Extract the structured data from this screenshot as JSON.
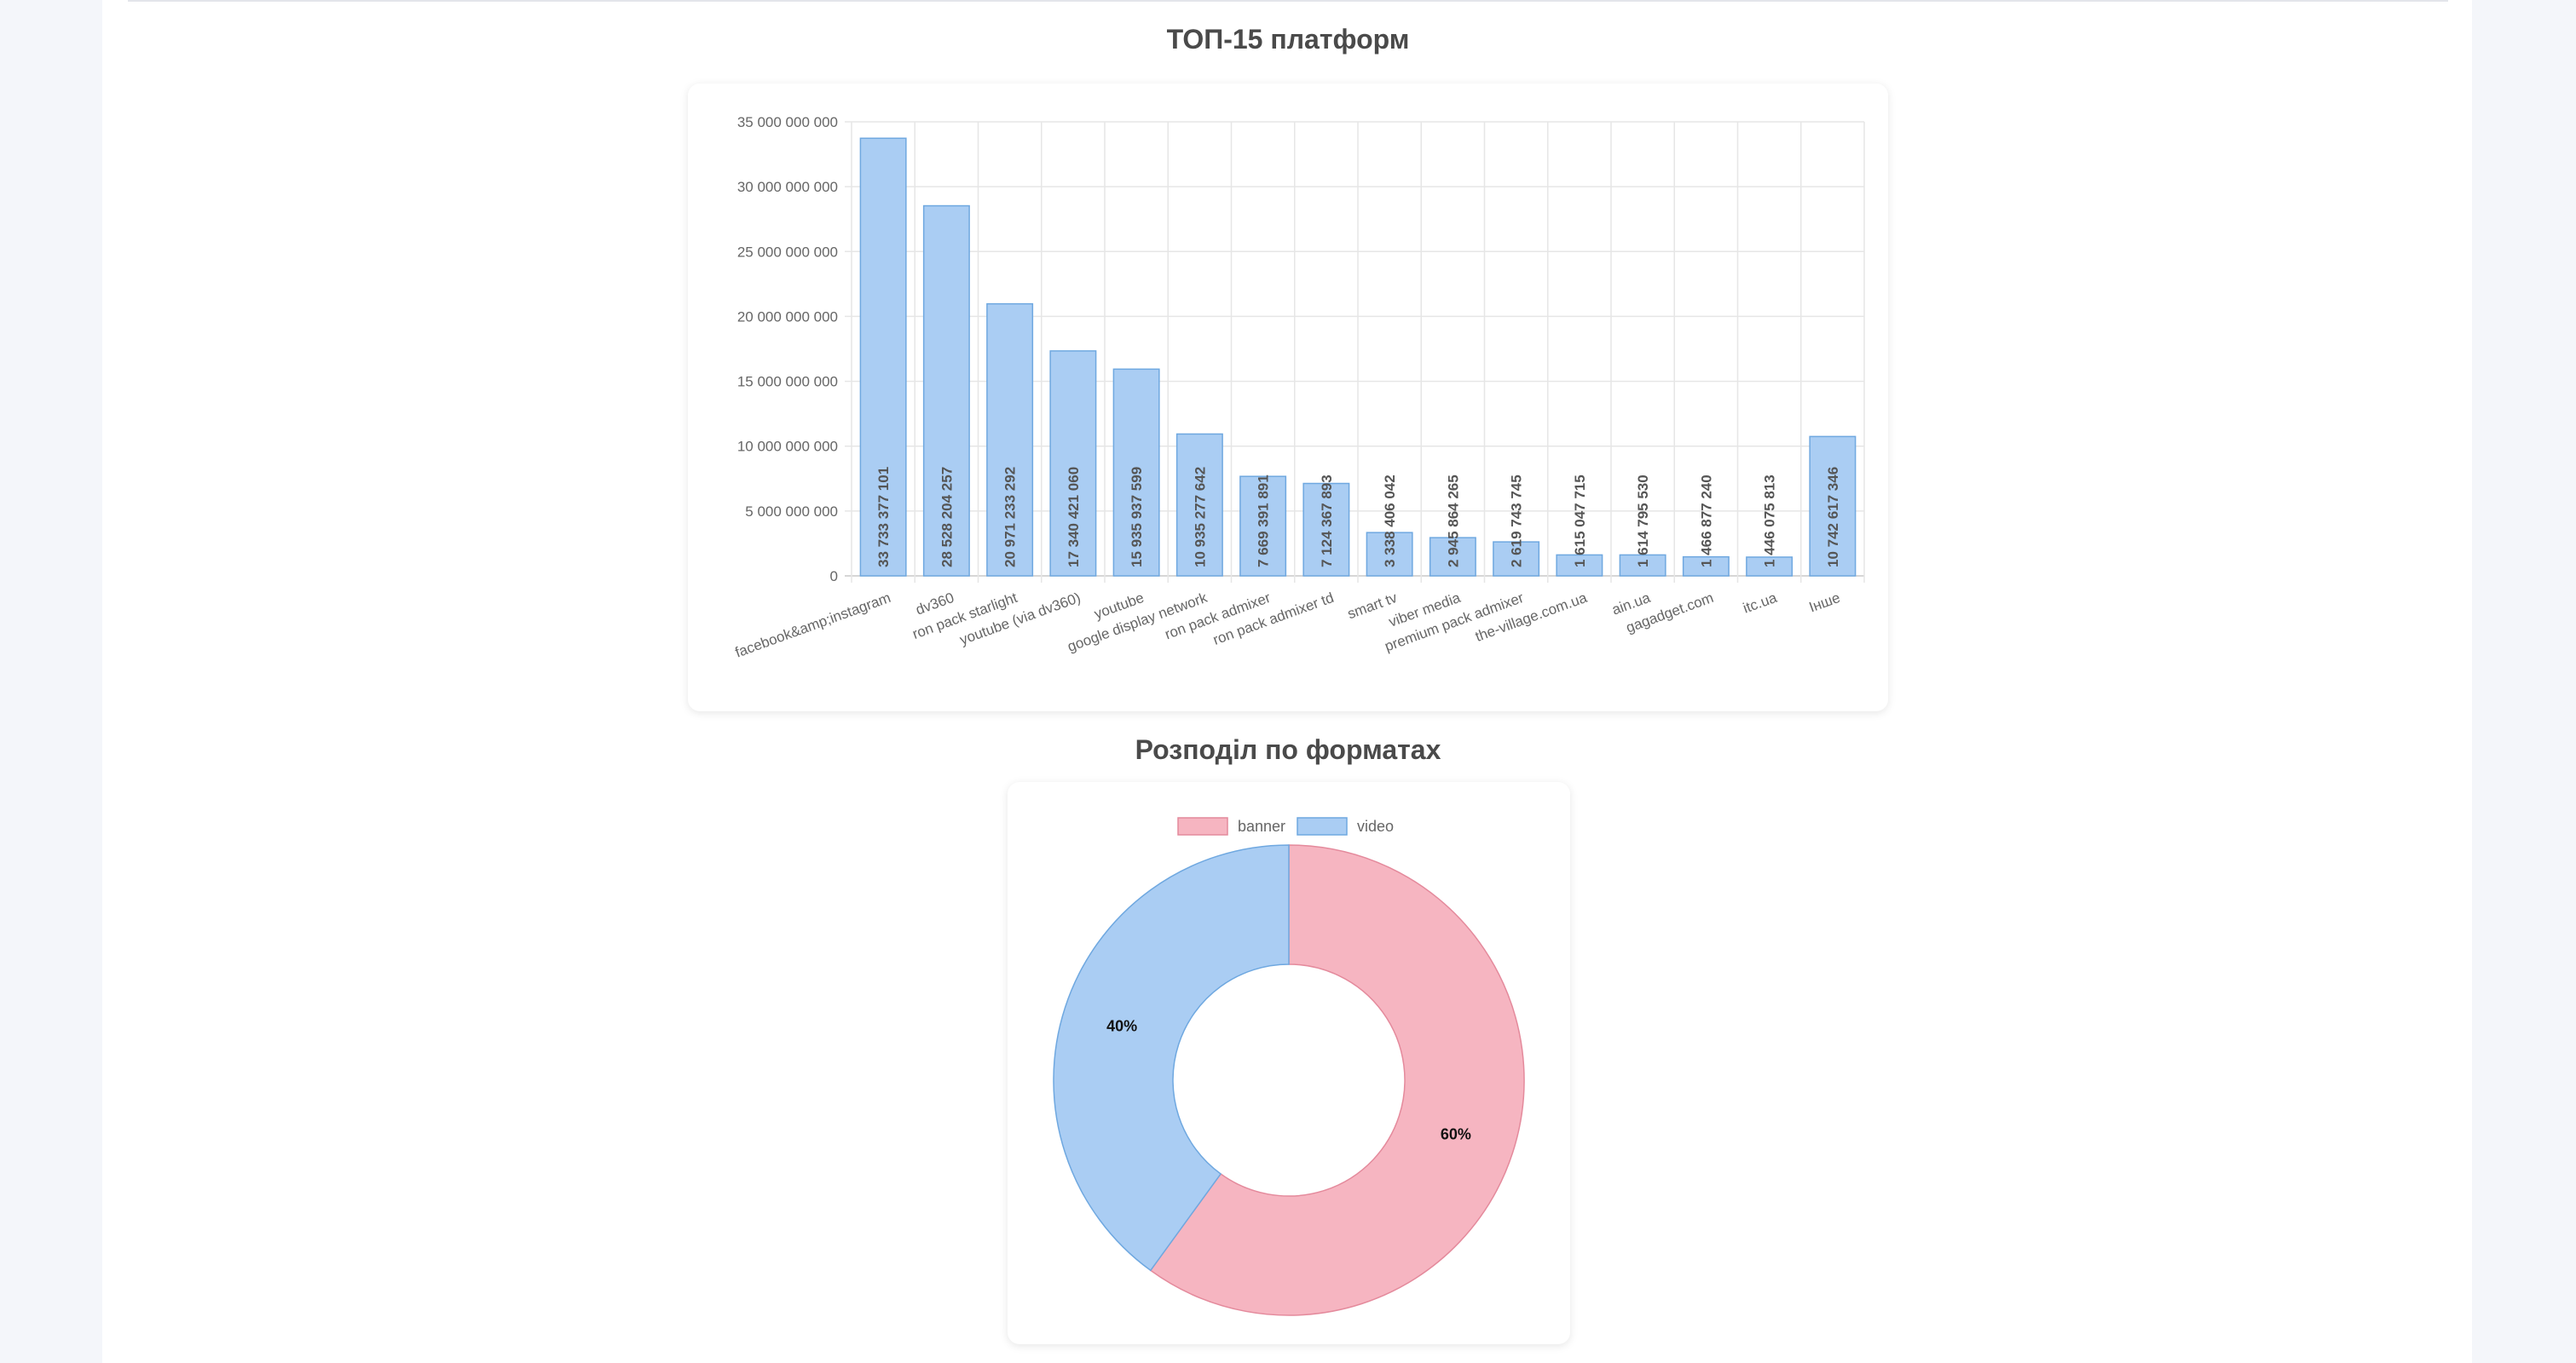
{
  "sections": {
    "platforms_title": "ТОП-15 платформ",
    "formats_title": "Розподіл по форматах"
  },
  "colors": {
    "bar_fill": "#aacdf3",
    "bar_stroke": "#6fa8e0",
    "banner": "#f6b5c1",
    "banner_stroke": "#e48a9c",
    "video": "#aacdf3",
    "video_stroke": "#6fa8e0"
  },
  "chart_data": [
    {
      "type": "bar",
      "title": "ТОП-15 платформ",
      "categories": [
        "facebook&amp;instagram",
        "dv360",
        "ron pack starlight",
        "youtube (via dv360)",
        "youtube",
        "google display network",
        "ron pack admixer",
        "ron pack admixer td",
        "smart tv",
        "viber media",
        "premium pack admixer",
        "the-village.com.ua",
        "ain.ua",
        "gagadget.com",
        "itc.ua",
        "Інше"
      ],
      "values": [
        33733377101,
        28528204257,
        20971233292,
        17340421060,
        15935937599,
        10935277642,
        7669391891,
        7124367893,
        3338406042,
        2945864265,
        2619743745,
        1615047715,
        1614795530,
        1466877240,
        1446075813,
        10742617346
      ],
      "value_labels": [
        "33 733 377 101",
        "28 528 204 257",
        "20 971 233 292",
        "17 340 421 060",
        "15 935 937 599",
        "10 935 277 642",
        "7 669 391 891",
        "7 124 367 893",
        "3 338 406 042",
        "2 945 864 265",
        "2 619 743 745",
        "1 615 047 715",
        "1 614 795 530",
        "1 466 877 240",
        "1 446 075 813",
        "10 742 617 346"
      ],
      "y_ticks": [
        0,
        5000000000,
        10000000000,
        15000000000,
        20000000000,
        25000000000,
        30000000000,
        35000000000
      ],
      "y_tick_labels": [
        "0",
        "5 000 000 000",
        "10 000 000 000",
        "15 000 000 000",
        "20 000 000 000",
        "25 000 000 000",
        "30 000 000 000",
        "35 000 000 000"
      ],
      "ylim": [
        0,
        35000000000
      ],
      "grid": true
    },
    {
      "type": "pie",
      "variant": "doughnut",
      "title": "Розподіл по форматах",
      "labels": [
        "banner",
        "video"
      ],
      "values": [
        60,
        40
      ],
      "value_labels": [
        "60%",
        "40%"
      ],
      "legend": "top"
    }
  ]
}
